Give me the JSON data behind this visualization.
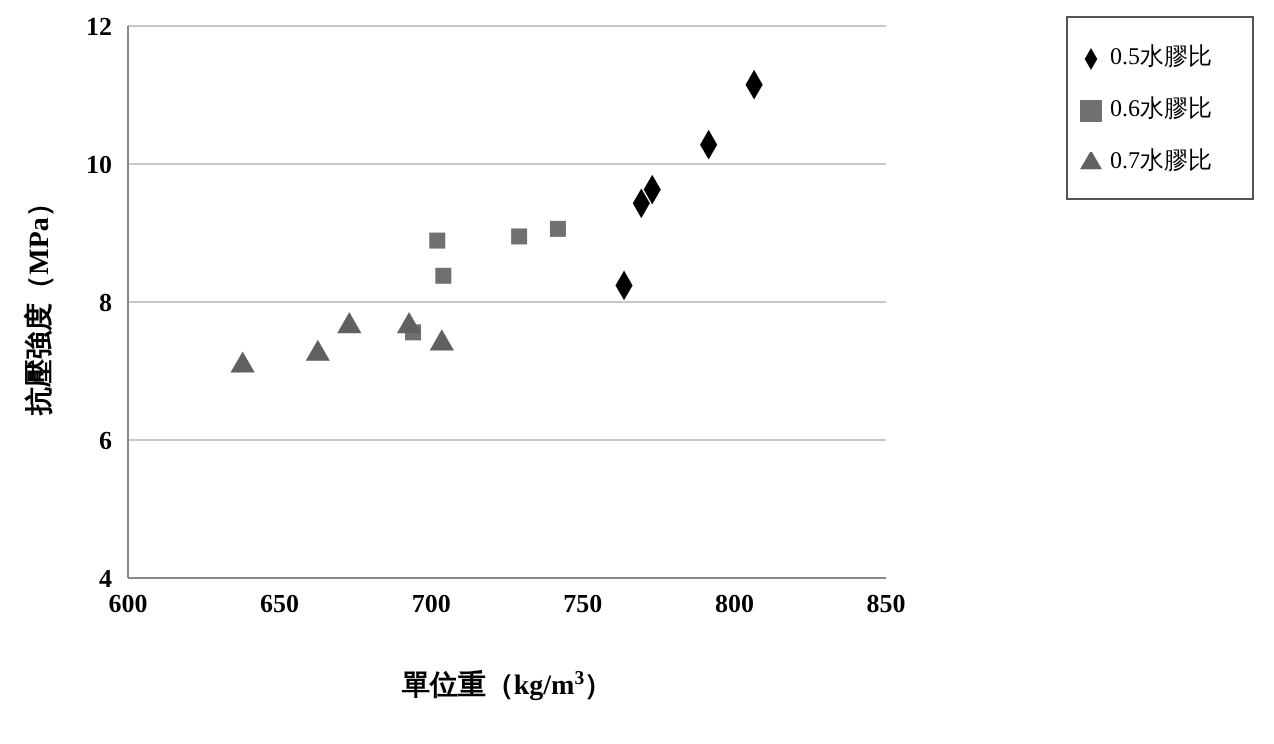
{
  "chart_data": {
    "type": "scatter",
    "xlabel": "單位重（kg/m$^{3}$）",
    "ylabel": "抗壓強度（MPa）",
    "xlim": [
      600,
      850
    ],
    "xticks": [
      600,
      650,
      700,
      750,
      800,
      850
    ],
    "ylim": [
      4,
      12
    ],
    "yticks": [
      4,
      6,
      8,
      10,
      12
    ],
    "grid": "y",
    "legend": "top right",
    "series": [
      {
        "name": "0.5水膠比",
        "color": "#000000",
        "marker": "diamond",
        "x": [
          806.5,
          791.5,
          772.9,
          769.3,
          763.6
        ],
        "values": [
          11.15,
          10.28,
          9.63,
          9.43,
          8.24
        ]
      },
      {
        "name": "0.6水膠比",
        "color": "#707070",
        "marker": "square",
        "x": [
          702,
          704,
          729,
          741.8,
          694
        ],
        "values": [
          8.89,
          8.38,
          8.95,
          9.06,
          7.56
        ]
      },
      {
        "name": "0.7水膠比",
        "color": "#606060",
        "marker": "triangle",
        "x": [
          637.8,
          662.6,
          673,
          692.7,
          703.5
        ],
        "values": [
          7.08,
          7.25,
          7.65,
          7.65,
          7.4
        ]
      }
    ]
  }
}
